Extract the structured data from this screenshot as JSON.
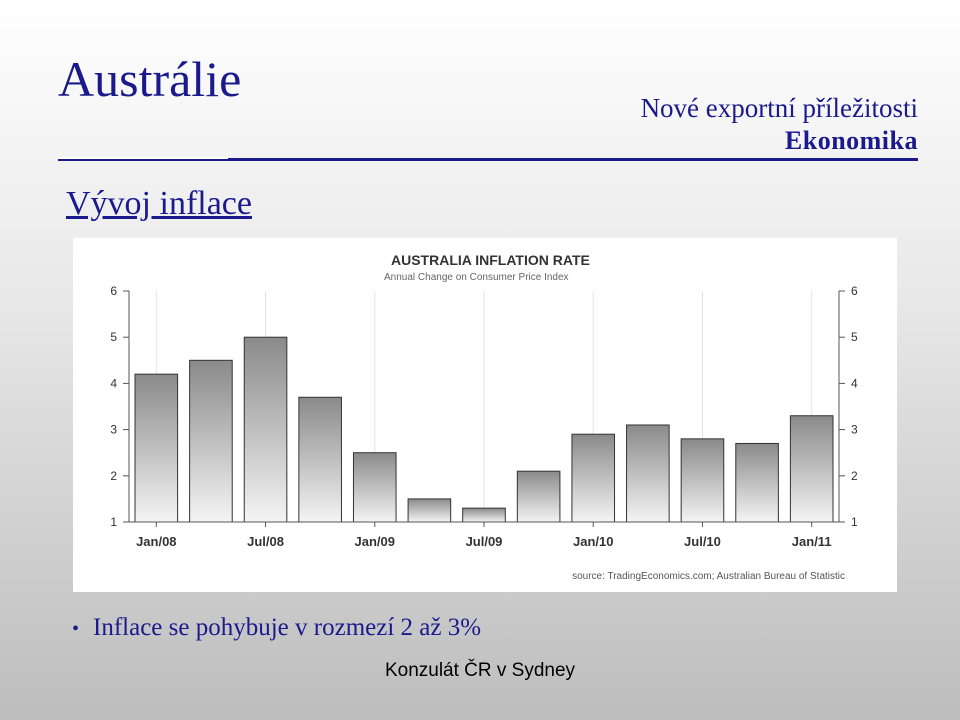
{
  "slide": {
    "title": "Austrálie",
    "subtitle_line1": "Nové exportní příležitosti",
    "subtitle_line2": "Ekonomika",
    "section_title": "Vývoj inflace",
    "bullet": "Inflace se pohybuje v rozmezí 2 až 3%",
    "footer": "Konzulát ČR v Sydney"
  },
  "colors": {
    "title": "#1a1a8c",
    "bar_top": "#8a8a8a",
    "bar_bottom": "#f4f4f4",
    "bar_edge": "#333333"
  },
  "chart_data": {
    "type": "bar",
    "title": "AUSTRALIA INFLATION RATE",
    "subtitle": "Annual Change on Consumer Price Index",
    "source": "source: TradingEconomics.com; Australian Bureau of Statistic",
    "categories": [
      "2008 Q1",
      "2008 Q2",
      "2008 Q3",
      "2008 Q4",
      "2009 Q1",
      "2009 Q2",
      "2009 Q3",
      "2009 Q4",
      "2010 Q1",
      "2010 Q2",
      "2010 Q3",
      "2010 Q4",
      "2011 Q1"
    ],
    "values": [
      4.2,
      4.5,
      5.0,
      3.7,
      2.5,
      1.5,
      1.3,
      2.1,
      2.9,
      3.1,
      2.8,
      2.7,
      3.3
    ],
    "xtick_labels": [
      "Jan/08",
      "Jul/08",
      "Jan/09",
      "Jul/09",
      "Jan/10",
      "Jul/10",
      "Jan/11"
    ],
    "yticks": [
      1,
      2,
      3,
      4,
      5,
      6
    ],
    "ylim": [
      1,
      6
    ],
    "y_axis_both_sides": true,
    "grid": "vertical"
  }
}
